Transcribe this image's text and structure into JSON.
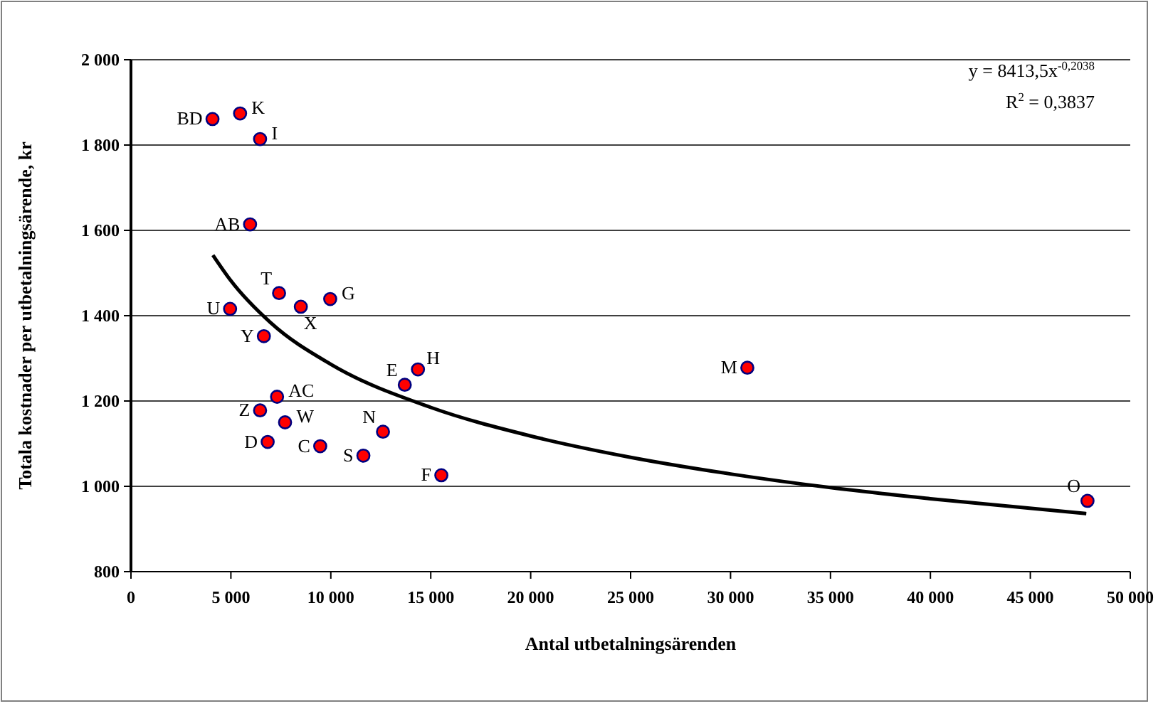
{
  "chart_data": {
    "type": "scatter",
    "xlabel": "Antal utbetalningsärenden",
    "ylabel": "Totala kostnader per utbetalningsärende, kr",
    "xlim": [
      0,
      50000
    ],
    "xticks": [
      0,
      {
        "value": 5000,
        "label": "5 000"
      },
      {
        "value": 10000,
        "label": "10 000"
      },
      {
        "value": 15000,
        "label": "15 000"
      },
      {
        "value": 20000,
        "label": "20 000"
      },
      {
        "value": 25000,
        "label": "25 000"
      },
      {
        "value": 30000,
        "label": "30 000"
      },
      {
        "value": 35000,
        "label": "35 000"
      },
      {
        "value": 40000,
        "label": "40 000"
      },
      {
        "value": 45000,
        "label": "45 000"
      },
      {
        "value": 50000,
        "label": "50 000"
      }
    ],
    "ylim": [
      800,
      2000
    ],
    "yticks": [
      800,
      {
        "value": 1000,
        "label": "1 000"
      },
      {
        "value": 1200,
        "label": "1 200"
      },
      {
        "value": 1400,
        "label": "1 400"
      },
      {
        "value": 1600,
        "label": "1 600"
      },
      {
        "value": 1800,
        "label": "1 800"
      },
      {
        "value": 2000,
        "label": "2 000"
      }
    ],
    "grid": "y",
    "marker": "circle",
    "series": [
      {
        "color": "#ff0000",
        "x": [
          4080,
          5460,
          6460,
          5960,
          7410,
          8500,
          9970,
          4960,
          6650,
          13700,
          14360,
          7310,
          6460,
          7710,
          6840,
          9470,
          12610,
          11630,
          15530,
          30840,
          47860
        ],
        "values": [
          1861,
          1874,
          1814,
          1614,
          1453,
          1421,
          1439,
          1416,
          1352,
          1238,
          1274,
          1210,
          1178,
          1150,
          1104,
          1094,
          1128,
          1072,
          1026,
          1278,
          966
        ]
      },
      {
        "type": "line",
        "color": "#000000",
        "marker": "none",
        "x": [
          4100,
          5000,
          7000,
          10000,
          15000,
          20000,
          25000,
          30000,
          35000,
          40000,
          47800
        ],
        "values": [
          1542,
          1482,
          1383,
          1286,
          1185,
          1118,
          1068,
          1029,
          997,
          971,
          936
        ]
      }
    ],
    "annotations": [
      {
        "text": "BD",
        "x": 4080,
        "y": 1861
      },
      {
        "text": "K",
        "x": 5460,
        "y": 1874
      },
      {
        "text": "I",
        "x": 6460,
        "y": 1814
      },
      {
        "text": "AB",
        "x": 5960,
        "y": 1614
      },
      {
        "text": "T",
        "x": 7410,
        "y": 1453
      },
      {
        "text": "X",
        "x": 8500,
        "y": 1421
      },
      {
        "text": "G",
        "x": 9970,
        "y": 1439
      },
      {
        "text": "U",
        "x": 4960,
        "y": 1416
      },
      {
        "text": "Y",
        "x": 6650,
        "y": 1352
      },
      {
        "text": "E",
        "x": 13700,
        "y": 1238
      },
      {
        "text": "H",
        "x": 14360,
        "y": 1274
      },
      {
        "text": "AC",
        "x": 7310,
        "y": 1210
      },
      {
        "text": "Z",
        "x": 6460,
        "y": 1178
      },
      {
        "text": "W",
        "x": 7710,
        "y": 1150
      },
      {
        "text": "D",
        "x": 6840,
        "y": 1104
      },
      {
        "text": "C",
        "x": 9470,
        "y": 1094
      },
      {
        "text": "N",
        "x": 12610,
        "y": 1128
      },
      {
        "text": "S",
        "x": 11630,
        "y": 1072
      },
      {
        "text": "F",
        "x": 15530,
        "y": 1026
      },
      {
        "text": "M",
        "x": 30840,
        "y": 1278
      },
      {
        "text": "O",
        "x": 47860,
        "y": 966
      },
      "y = 8413,5x$^{-0,2038}$",
      "R$^{2}$ = 0,3837"
    ]
  }
}
